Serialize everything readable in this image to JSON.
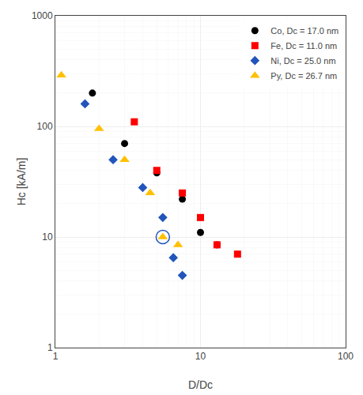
{
  "chart_data": {
    "type": "scatter",
    "xlabel": "D/Dc",
    "ylabel": "Hc [kA/m]",
    "log": true,
    "xlim": [
      1,
      100
    ],
    "ylim": [
      1,
      1000
    ],
    "xticks": [
      1,
      10,
      100
    ],
    "yticks": [
      1,
      10,
      100,
      1000
    ],
    "grid": true,
    "legend": "upper right",
    "series": [
      {
        "name": "Co, Dc = 17.0 nm",
        "color": "#000000",
        "marker": "circle",
        "x": [
          1.8,
          3.0,
          5.0,
          7.5,
          10.0,
          13.0
        ],
        "values": [
          200,
          70,
          38,
          22,
          11,
          8.5
        ]
      },
      {
        "name": "Fe, Dc = 11.0 nm",
        "color": "#FF0000",
        "marker": "square",
        "x": [
          3.5,
          5.0,
          7.5,
          10.0,
          13.0,
          18.0
        ],
        "values": [
          110,
          40,
          25,
          15,
          8.5,
          7.0
        ]
      },
      {
        "name": "Ni, Dc = 25.0 nm",
        "color": "#2255BB",
        "marker": "diamond",
        "x": [
          1.6,
          2.5,
          4.0,
          5.5,
          6.5,
          7.5
        ],
        "values": [
          160,
          50,
          28,
          15,
          6.5,
          4.5
        ]
      },
      {
        "name": "Py, Dc = 26.7 nm",
        "color": "#FFC000",
        "marker": "triangle-up",
        "x": [
          1.1,
          2.0,
          3.0,
          4.5,
          5.5,
          7.0
        ],
        "values": [
          290,
          95,
          50,
          25,
          10,
          8.5
        ]
      },
      {
        "color": "#2255BB",
        "marker": "circle-open",
        "x": [
          5.5
        ],
        "values": [
          10.0
        ]
      }
    ]
  }
}
